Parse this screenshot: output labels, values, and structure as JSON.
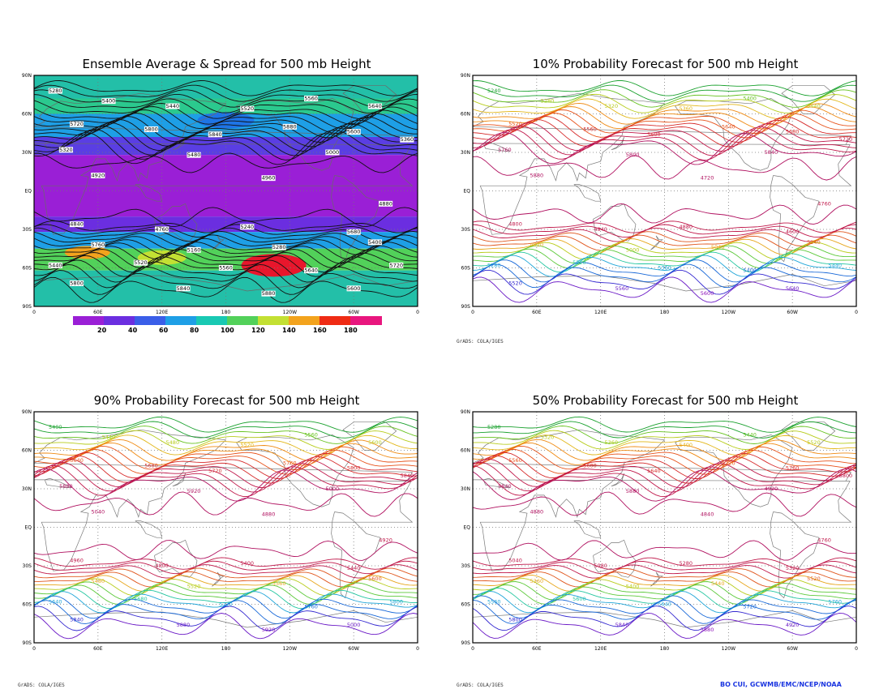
{
  "chart_data": [
    {
      "type": "contour",
      "title": "Ensemble Average & Spread for 500 mb Height",
      "field": "spread_shaded_with_mean_contours",
      "ytick_labels": [
        "90N",
        "60N",
        "30N",
        "EQ",
        "30S",
        "60S",
        "90S"
      ],
      "xtick_labels": [
        "0",
        "60E",
        "120E",
        "180",
        "120W",
        "60W",
        "0"
      ],
      "contour_labels": [
        "5280",
        "5400",
        "5440",
        "5520",
        "5560",
        "5640",
        "5720",
        "5800",
        "5840",
        "5880",
        "5600",
        "5360",
        "5320",
        "5480",
        "5000",
        "4920",
        "4960",
        "4880",
        "4840",
        "4760",
        "5240",
        "5680",
        "5760",
        "5160"
      ],
      "colorbar": {
        "levels": [
          "20",
          "40",
          "60",
          "80",
          "100",
          "120",
          "140",
          "160",
          "180"
        ],
        "colors": [
          "#9a1fd6",
          "#6b2ee0",
          "#3a5ee8",
          "#1e9fe6",
          "#19c9b3",
          "#52d15a",
          "#c3e033",
          "#f3a31d",
          "#ef2b14",
          "#e8167e"
        ]
      }
    },
    {
      "type": "contour",
      "title": "10% Probability Forecast for 500 mb Height",
      "ytick_labels": [
        "90N",
        "60N",
        "30N",
        "EQ",
        "30S",
        "60S",
        "90S"
      ],
      "xtick_labels": [
        "0",
        "60E",
        "120E",
        "180",
        "120W",
        "60W",
        "0"
      ],
      "contour_labels": [
        "5240",
        "5280",
        "5320",
        "5360",
        "5400",
        "5440",
        "5520",
        "5560",
        "5600",
        "5640",
        "5680",
        "5720",
        "5760",
        "5800",
        "5840",
        "5880",
        "4720",
        "4760",
        "4800",
        "4840",
        "4880",
        "4600",
        "4920",
        "5000",
        "5040"
      ],
      "footer": "GrADS: COLA/IGES"
    },
    {
      "type": "contour",
      "title": "90% Probability Forecast for 500 mb Height",
      "ytick_labels": [
        "90N",
        "60N",
        "30N",
        "EQ",
        "30S",
        "60S",
        "90S"
      ],
      "xtick_labels": [
        "0",
        "60E",
        "120E",
        "180",
        "120W",
        "60W",
        "0"
      ],
      "contour_labels": [
        "5400",
        "5440",
        "5480",
        "5520",
        "5560",
        "5600",
        "5640",
        "5680",
        "5720",
        "5760",
        "5800",
        "5840",
        "5880",
        "5920",
        "5000",
        "5040",
        "4880",
        "4920",
        "4960",
        "4800"
      ],
      "footer": "GrADS: COLA/IGES"
    },
    {
      "type": "contour",
      "title": "50% Probability Forecast for 500 mb Height",
      "ytick_labels": [
        "90N",
        "60N",
        "30N",
        "EQ",
        "30S",
        "60S",
        "90S"
      ],
      "xtick_labels": [
        "0",
        "60E",
        "120E",
        "180",
        "120W",
        "60W",
        "0"
      ],
      "contour_labels": [
        "5280",
        "5320",
        "5360",
        "5400",
        "5440",
        "5520",
        "5560",
        "5600",
        "5640",
        "5720",
        "5760",
        "5800",
        "5840",
        "5880",
        "4920",
        "4880",
        "4840",
        "4760",
        "5040",
        "5080"
      ],
      "footer": "GrADS: COLA/IGES",
      "credit": "BO CUI, GCWMB/EMC/NCEP/NOAA"
    }
  ]
}
